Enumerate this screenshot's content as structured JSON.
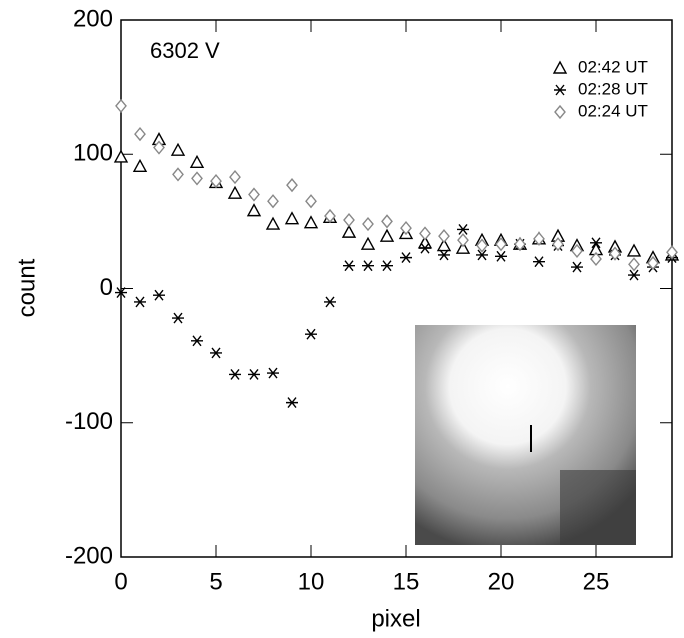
{
  "chart_data": {
    "type": "scatter",
    "title": "6302 V",
    "xlabel": "pixel",
    "ylabel": "count",
    "x": [
      0,
      1,
      2,
      3,
      4,
      5,
      6,
      7,
      8,
      9,
      10,
      11,
      12,
      13,
      14,
      15,
      16,
      17,
      18,
      19,
      20,
      21,
      22,
      23,
      24,
      25,
      26,
      27,
      28,
      29
    ],
    "series": [
      {
        "name": "02:42 UT",
        "marker": "triangle",
        "color": "#000000",
        "values": [
          98,
          91,
          111,
          103,
          94,
          79,
          71,
          58,
          48,
          52,
          49,
          53,
          42,
          33,
          39,
          41,
          34,
          32,
          30,
          36,
          36,
          33,
          37,
          39,
          32,
          29,
          31,
          28,
          23,
          25
        ]
      },
      {
        "name": "02:28 UT",
        "marker": "asterisk",
        "color": "#000000",
        "values": [
          -3,
          -10,
          -5,
          -22,
          -39,
          -48,
          -64,
          -64,
          -63,
          -85,
          -34,
          -10,
          17,
          17,
          17,
          23,
          30,
          25,
          44,
          25,
          24,
          33,
          20,
          32,
          16,
          34,
          25,
          10,
          16,
          23
        ]
      },
      {
        "name": "02:24 UT",
        "marker": "diamond",
        "color": "#888888",
        "values": [
          136,
          115,
          105,
          85,
          82,
          80,
          83,
          70,
          65,
          77,
          65,
          54,
          51,
          48,
          50,
          45,
          41,
          39,
          36,
          32,
          33,
          33,
          37,
          33,
          28,
          22,
          26,
          18,
          19,
          27
        ]
      }
    ],
    "xlim": [
      0,
      29
    ],
    "ylim": [
      -200,
      200
    ],
    "xticks": [
      0,
      5,
      10,
      15,
      20,
      25
    ],
    "yticks": [
      -200,
      -100,
      0,
      100,
      200
    ],
    "legend": "upper right"
  }
}
